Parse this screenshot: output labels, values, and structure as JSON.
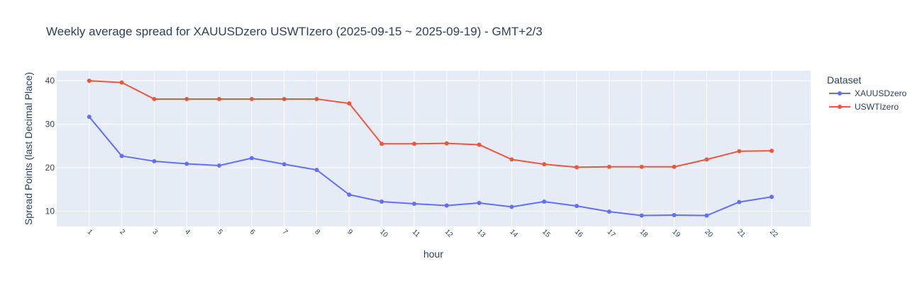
{
  "chart_data": {
    "type": "line",
    "title": "Weekly average spread for  XAUUSDzero USWTIzero (2025-09-15 ~ 2025-09-19) - GMT+2/3",
    "xlabel": "hour",
    "ylabel": "Spread Points (last Decimal Place)",
    "x": [
      1,
      2,
      3,
      4,
      5,
      6,
      7,
      8,
      9,
      10,
      11,
      12,
      13,
      14,
      15,
      16,
      17,
      18,
      19,
      20,
      21,
      22
    ],
    "yticks": [
      10,
      20,
      30,
      40
    ],
    "ylim": [
      6.5,
      42.3
    ],
    "xlim": [
      0.0,
      23.2
    ],
    "grid": true,
    "legend": {
      "title": "Dataset",
      "placement": "top-right outside"
    },
    "series": [
      {
        "name": "XAUUSDzero",
        "color": "#636efa",
        "values": [
          31.7,
          22.7,
          21.5,
          20.9,
          20.5,
          22.2,
          20.8,
          19.5,
          13.8,
          12.2,
          11.7,
          11.3,
          11.9,
          11.0,
          12.2,
          11.2,
          9.9,
          9.0,
          9.1,
          9.0,
          12.1,
          13.3
        ]
      },
      {
        "name": "USWTIzero",
        "color": "#ef553b",
        "values": [
          40.0,
          39.6,
          35.8,
          35.8,
          35.8,
          35.8,
          35.8,
          35.8,
          34.8,
          25.5,
          25.5,
          25.6,
          25.3,
          21.9,
          20.8,
          20.1,
          20.2,
          20.2,
          20.2,
          21.9,
          23.8,
          23.9
        ]
      }
    ]
  },
  "colors": {
    "plot_bg": "#e5ecf6",
    "grid": "#ffffff",
    "text": "#2a3f5f"
  }
}
